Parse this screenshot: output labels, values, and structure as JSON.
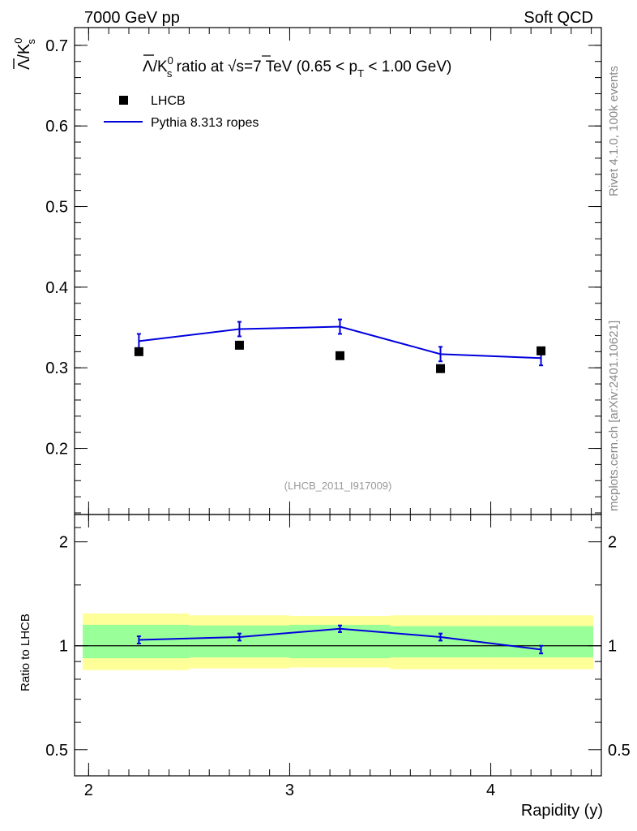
{
  "header": {
    "left": "7000 GeV pp",
    "right": "Soft QCD"
  },
  "side_labels": {
    "rivet": "Rivet 4.1.0,  100k events",
    "mcplots": "mcplots.cern.ch [arXiv:2401.10621]"
  },
  "chart_data": [
    {
      "panel": "main",
      "type": "scatter",
      "title": "Λ̄/K⁰s ratio at √s=7 TeV (0.65 < pT < 1.00 GeV)",
      "title_parts": {
        "pre": "Λ/K",
        "sup": "0",
        "sub": "s",
        "mid": " ratio at ",
        "sqrt": "√",
        "s_eq": "s=7 TeV (0.65 < p",
        "pt_sub": "T",
        "post": " < 1.00 GeV)"
      },
      "ylabel": "Λ̄/K⁰s",
      "ylabel_parts": {
        "main": "Λ/K",
        "sup": "0",
        "sub": "s"
      },
      "watermark": "(LHCB_2011_I917009)",
      "xlim": [
        1.93,
        4.55
      ],
      "ylim": [
        0.118,
        0.722
      ],
      "yticks": [
        0.2,
        0.3,
        0.4,
        0.5,
        0.6,
        0.7
      ],
      "ytick_labels": [
        "0.2",
        "0.3",
        "0.4",
        "0.5",
        "0.6",
        "0.7"
      ],
      "series": [
        {
          "name": "LHCB",
          "style": "markers",
          "color": "#000000",
          "x": [
            2.25,
            2.75,
            3.25,
            3.75,
            4.25
          ],
          "y": [
            0.32,
            0.328,
            0.315,
            0.299,
            0.321
          ]
        },
        {
          "name": "Pythia 8.313 ropes",
          "style": "line",
          "color": "#0000dd",
          "x": [
            2.25,
            2.75,
            3.25,
            3.75,
            4.25
          ],
          "y": [
            0.333,
            0.348,
            0.351,
            0.317,
            0.312
          ],
          "err": [
            0.009,
            0.009,
            0.009,
            0.009,
            0.009
          ]
        }
      ]
    },
    {
      "panel": "ratio",
      "type": "line",
      "ylabel": "Ratio to LHCB",
      "xlabel": "Rapidity (y)",
      "yscale": "log",
      "ylim": [
        0.42,
        2.4
      ],
      "xlim": [
        1.93,
        4.55
      ],
      "yticks": [
        0.5,
        1,
        2
      ],
      "ytick_labels": [
        "0.5",
        "1",
        "2"
      ],
      "xticks": [
        2,
        3,
        4
      ],
      "xtick_labels": [
        "2",
        "3",
        "4"
      ],
      "bins": [
        {
          "x": [
            1.93,
            2.5
          ],
          "inner": [
            0.92,
            1.15
          ],
          "outer": [
            0.85,
            1.24
          ]
        },
        {
          "x": [
            2.5,
            3.0
          ],
          "inner": [
            0.925,
            1.145
          ],
          "outer": [
            0.86,
            1.225
          ]
        },
        {
          "x": [
            3.0,
            3.5
          ],
          "inner": [
            0.92,
            1.15
          ],
          "outer": [
            0.865,
            1.22
          ]
        },
        {
          "x": [
            3.5,
            4.0
          ],
          "inner": [
            0.925,
            1.14
          ],
          "outer": [
            0.855,
            1.225
          ]
        },
        {
          "x": [
            4.0,
            4.55
          ],
          "inner": [
            0.925,
            1.14
          ],
          "outer": [
            0.855,
            1.225
          ]
        }
      ],
      "series": [
        {
          "name": "Pythia 8.313 ropes / LHCB",
          "color": "#0000dd",
          "x": [
            2.25,
            2.75,
            3.25,
            3.75,
            4.25
          ],
          "y": [
            1.04,
            1.06,
            1.12,
            1.06,
            0.975
          ],
          "err": [
            0.025,
            0.025,
            0.025,
            0.025,
            0.025
          ]
        }
      ],
      "colors": {
        "inner_band": "#99ff99",
        "outer_band": "#ffff99"
      }
    }
  ]
}
